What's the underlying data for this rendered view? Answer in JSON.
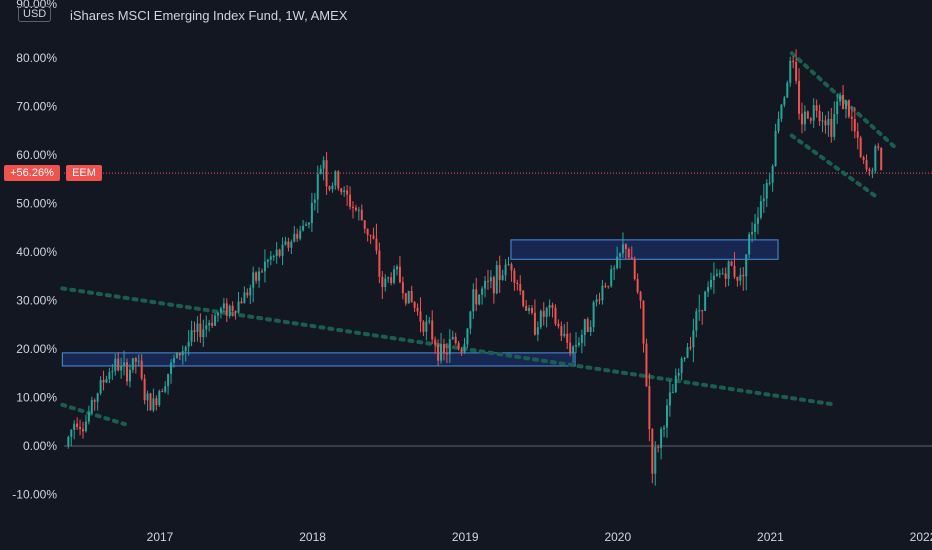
{
  "header": {
    "title": "iShares MSCI Emerging Index Fund, 1W, AMEX",
    "currency_button": "USD"
  },
  "badges": {
    "last_change": "+56.26%",
    "symbol": "EEM"
  },
  "colors": {
    "background": "#131722",
    "up": "#26a69a",
    "down": "#ef5350",
    "grid_text": "#d1d4dc",
    "zone_fill": "#2962ff",
    "trendline": "#1b5e4f"
  },
  "chart_data": {
    "type": "candlestick",
    "title": "iShares MSCI Emerging Index Fund, 1W, AMEX",
    "y_scale": "percent",
    "ylim": [
      -13,
      90
    ],
    "xlim": [
      2016.35,
      2022.0
    ],
    "y_ticks": [
      "80.00%",
      "70.00%",
      "60.00%",
      "50.00%",
      "40.00%",
      "30.00%",
      "20.00%",
      "10.00%",
      "0.00%",
      "-10.00%"
    ],
    "y_tick_values": [
      80,
      70,
      60,
      50,
      40,
      30,
      20,
      10,
      0,
      -10
    ],
    "top_cut_label": "90.00%",
    "x_ticks": [
      "2017",
      "2018",
      "2019",
      "2020",
      "2021",
      "2022"
    ],
    "x_tick_values": [
      2017,
      2018,
      2019,
      2020,
      2021,
      2022
    ],
    "last_value": 56.26,
    "zero_line": 0,
    "price_path": [
      [
        2016.38,
        0
      ],
      [
        2016.45,
        6
      ],
      [
        2016.5,
        4
      ],
      [
        2016.6,
        12
      ],
      [
        2016.7,
        17
      ],
      [
        2016.78,
        15
      ],
      [
        2016.85,
        18
      ],
      [
        2016.9,
        10
      ],
      [
        2016.95,
        8
      ],
      [
        2017.0,
        12
      ],
      [
        2017.05,
        15
      ],
      [
        2017.1,
        18
      ],
      [
        2017.2,
        22
      ],
      [
        2017.3,
        25
      ],
      [
        2017.4,
        28
      ],
      [
        2017.5,
        29
      ],
      [
        2017.6,
        33
      ],
      [
        2017.7,
        38
      ],
      [
        2017.8,
        40
      ],
      [
        2017.9,
        44
      ],
      [
        2017.95,
        45
      ],
      [
        2018.0,
        50
      ],
      [
        2018.07,
        60
      ],
      [
        2018.1,
        53
      ],
      [
        2018.15,
        55
      ],
      [
        2018.2,
        52
      ],
      [
        2018.3,
        48
      ],
      [
        2018.4,
        42
      ],
      [
        2018.45,
        33
      ],
      [
        2018.55,
        36
      ],
      [
        2018.6,
        32
      ],
      [
        2018.7,
        27
      ],
      [
        2018.8,
        22
      ],
      [
        2018.85,
        18
      ],
      [
        2018.92,
        22
      ],
      [
        2018.98,
        20
      ],
      [
        2019.05,
        30
      ],
      [
        2019.15,
        33
      ],
      [
        2019.25,
        36
      ],
      [
        2019.3,
        38
      ],
      [
        2019.38,
        30
      ],
      [
        2019.45,
        25
      ],
      [
        2019.55,
        28
      ],
      [
        2019.65,
        22
      ],
      [
        2019.7,
        20
      ],
      [
        2019.8,
        25
      ],
      [
        2019.9,
        33
      ],
      [
        2019.98,
        36
      ],
      [
        2020.05,
        42
      ],
      [
        2020.1,
        36
      ],
      [
        2020.15,
        28
      ],
      [
        2020.2,
        8
      ],
      [
        2020.22,
        -5
      ],
      [
        2020.3,
        5
      ],
      [
        2020.4,
        15
      ],
      [
        2020.5,
        25
      ],
      [
        2020.55,
        30
      ],
      [
        2020.65,
        35
      ],
      [
        2020.75,
        37
      ],
      [
        2020.8,
        34
      ],
      [
        2020.88,
        45
      ],
      [
        2020.95,
        52
      ],
      [
        2021.0,
        56
      ],
      [
        2021.05,
        68
      ],
      [
        2021.1,
        74
      ],
      [
        2021.14,
        80
      ],
      [
        2021.2,
        67
      ],
      [
        2021.3,
        70
      ],
      [
        2021.4,
        66
      ],
      [
        2021.45,
        72
      ],
      [
        2021.5,
        70
      ],
      [
        2021.55,
        65
      ],
      [
        2021.6,
        58
      ],
      [
        2021.65,
        56
      ],
      [
        2021.7,
        62
      ],
      [
        2021.72,
        58
      ],
      [
        2021.74,
        56.26
      ]
    ],
    "zones": [
      {
        "x0": 2016.36,
        "x1": 2019.72,
        "y_low": 16.5,
        "y_high": 19.2
      },
      {
        "x0": 2019.3,
        "x1": 2021.05,
        "y_low": 38.5,
        "y_high": 42.5
      }
    ],
    "trendlines": [
      {
        "x0": 2016.36,
        "y0": 32.5,
        "x1": 2021.43,
        "y1": 8.5
      },
      {
        "x0": 2016.36,
        "y0": 8.5,
        "x1": 2016.77,
        "y1": 4.5
      },
      {
        "x0": 2021.14,
        "y0": 81.0,
        "x1": 2021.82,
        "y1": 61.5
      },
      {
        "x0": 2021.14,
        "y0": 64.0,
        "x1": 2021.69,
        "y1": 51.5
      }
    ]
  }
}
